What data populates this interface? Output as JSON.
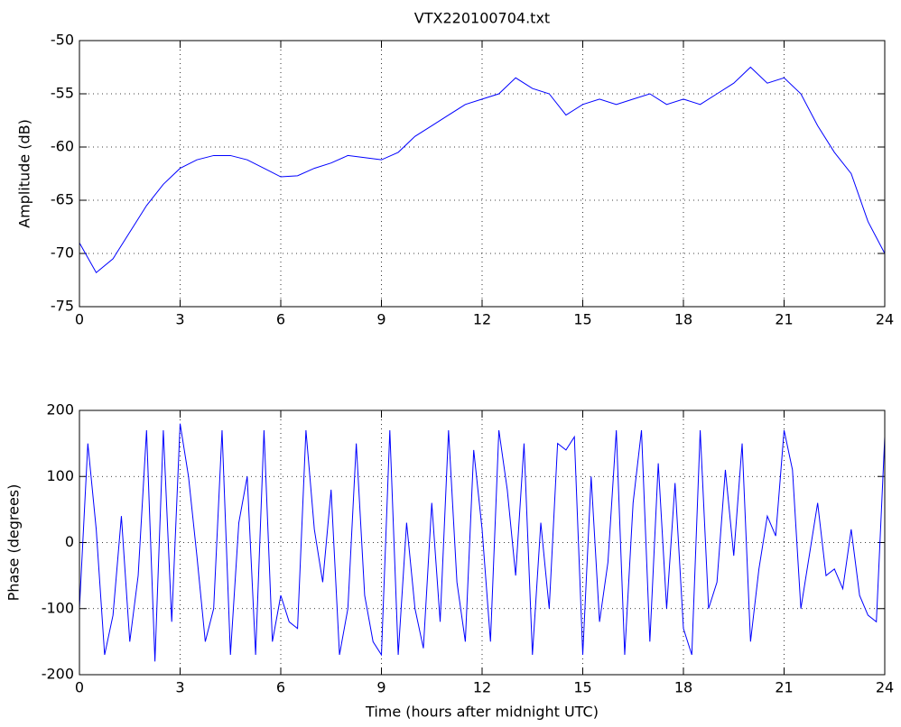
{
  "chart_data": [
    {
      "type": "line",
      "title": "VTX220100704.txt",
      "ylabel": "Amplitude (dB)",
      "color": "#0000ff",
      "grid": true,
      "x": [
        0,
        0.5,
        1,
        1.5,
        2,
        2.5,
        3,
        3.5,
        4,
        4.5,
        5,
        5.5,
        6,
        6.5,
        7,
        7.5,
        8,
        8.5,
        9,
        9.5,
        10,
        10.5,
        11,
        11.5,
        12,
        12.5,
        13,
        13.5,
        14,
        14.5,
        15,
        15.5,
        16,
        16.5,
        17,
        17.5,
        18,
        18.5,
        19,
        19.5,
        20,
        20.5,
        21,
        21.5,
        22,
        22.5,
        23,
        23.5,
        24
      ],
      "values": [
        -69,
        -71.8,
        -70.5,
        -68,
        -65.5,
        -63.5,
        -62,
        -61.2,
        -60.8,
        -60.8,
        -61.2,
        -62,
        -62.8,
        -62.7,
        -62,
        -61.5,
        -60.8,
        -61,
        -61.2,
        -60.5,
        -59,
        -58,
        -57,
        -56,
        -55.5,
        -55,
        -53.5,
        -54.5,
        -55,
        -57,
        -56,
        -55.5,
        -56,
        -55.5,
        -55,
        -56,
        -55.5,
        -56,
        -55,
        -54,
        -52.5,
        -54,
        -53.5,
        -55,
        -58,
        -60.5,
        -62.5,
        -67,
        -70
      ],
      "xlim": [
        0,
        24
      ],
      "xticks": [
        0,
        3,
        6,
        9,
        12,
        15,
        18,
        21,
        24
      ],
      "ylim": [
        -75,
        -50
      ],
      "yticks": [
        -75,
        -70,
        -65,
        -60,
        -55,
        -50
      ]
    },
    {
      "type": "line",
      "ylabel": "Phase (degrees)",
      "xlabel": "Time (hours after midnight UTC)",
      "color": "#0000ff",
      "grid": true,
      "x": [
        0,
        0.25,
        0.5,
        0.75,
        1,
        1.25,
        1.5,
        1.75,
        2,
        2.25,
        2.5,
        2.75,
        3,
        3.25,
        3.5,
        3.75,
        4,
        4.25,
        4.5,
        4.75,
        5,
        5.25,
        5.5,
        5.75,
        6,
        6.25,
        6.5,
        6.75,
        7,
        7.25,
        7.5,
        7.75,
        8,
        8.25,
        8.5,
        8.75,
        9,
        9.25,
        9.5,
        9.75,
        10,
        10.25,
        10.5,
        10.75,
        11,
        11.25,
        11.5,
        11.75,
        12,
        12.25,
        12.5,
        12.75,
        13,
        13.25,
        13.5,
        13.75,
        14,
        14.25,
        14.5,
        14.75,
        15,
        15.25,
        15.5,
        15.75,
        16,
        16.25,
        16.5,
        16.75,
        17,
        17.25,
        17.5,
        17.75,
        18,
        18.25,
        18.5,
        18.75,
        19,
        19.25,
        19.5,
        19.75,
        20,
        20.25,
        20.5,
        20.75,
        21,
        21.25,
        21.5,
        21.75,
        22,
        22.25,
        22.5,
        22.75,
        23,
        23.25,
        23.5,
        23.75,
        24
      ],
      "values": [
        -100,
        150,
        20,
        -170,
        -110,
        40,
        -150,
        -50,
        170,
        -180,
        170,
        -120,
        180,
        100,
        -20,
        -150,
        -100,
        170,
        -170,
        30,
        100,
        -170,
        170,
        -150,
        -80,
        -120,
        -130,
        170,
        20,
        -60,
        80,
        -170,
        -100,
        150,
        -80,
        -150,
        -170,
        170,
        -170,
        30,
        -100,
        -160,
        60,
        -120,
        170,
        -60,
        -150,
        140,
        20,
        -150,
        170,
        80,
        -50,
        150,
        -170,
        30,
        -100,
        150,
        140,
        160,
        -170,
        100,
        -120,
        -30,
        170,
        -170,
        60,
        170,
        -150,
        120,
        -100,
        90,
        -130,
        -170,
        170,
        -100,
        -60,
        110,
        -20,
        150,
        -150,
        -40,
        40,
        10,
        170,
        110,
        -100,
        -20,
        60,
        -50,
        -40,
        -70,
        20,
        -80,
        -110,
        -120,
        160
      ],
      "xlim": [
        0,
        24
      ],
      "xticks": [
        0,
        3,
        6,
        9,
        12,
        15,
        18,
        21,
        24
      ],
      "ylim": [
        -200,
        200
      ],
      "yticks": [
        -200,
        -100,
        0,
        100,
        200
      ]
    }
  ]
}
